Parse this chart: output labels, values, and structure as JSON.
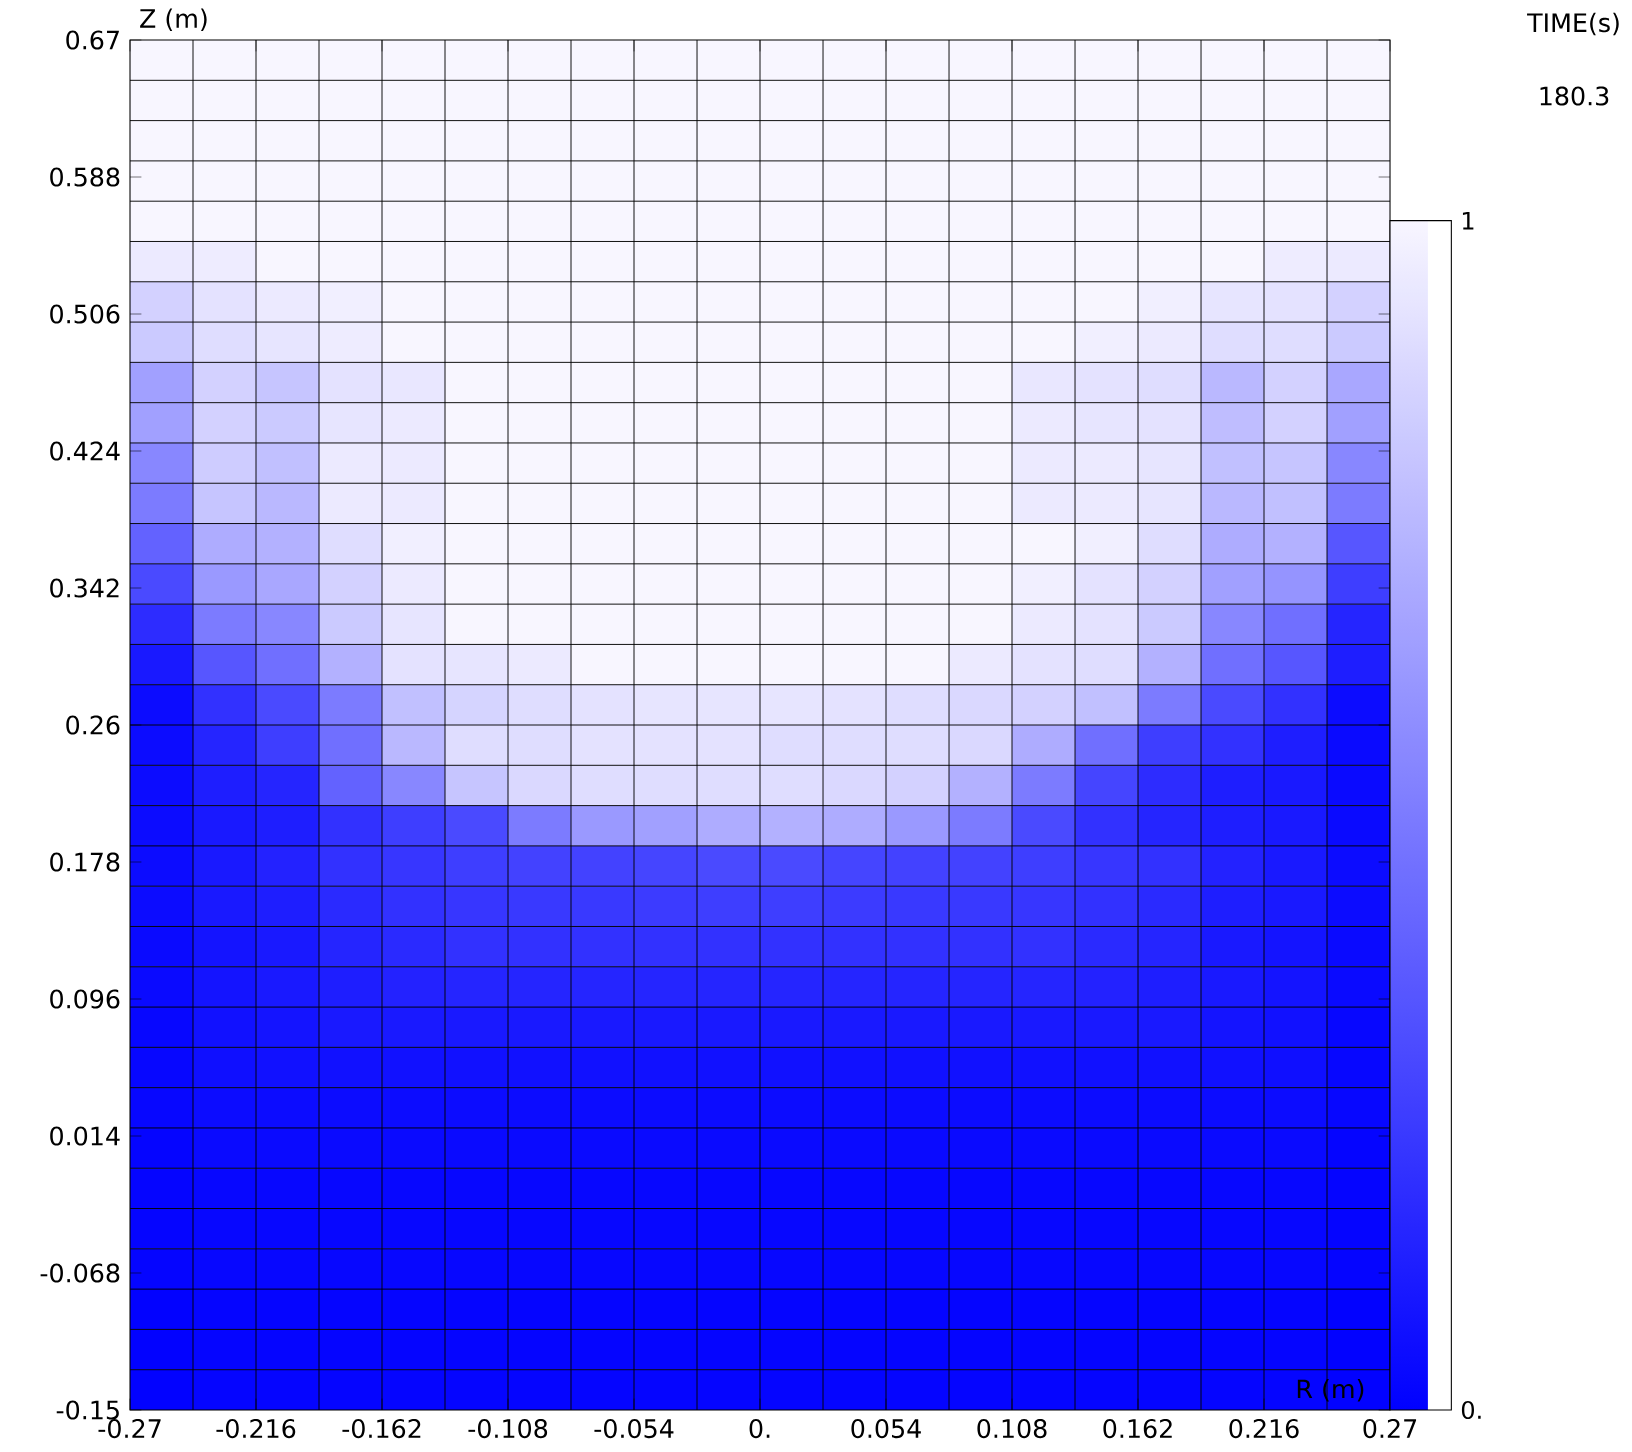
{
  "chart_data": {
    "type": "heatmap",
    "xlabel": "R (m)",
    "ylabel": "Z (m)",
    "annotations": [
      "TIME(s)",
      "180.3"
    ],
    "xlim": [
      -0.27,
      0.27
    ],
    "ylim": [
      -0.15,
      0.67
    ],
    "xticks": [
      -0.27,
      -0.216,
      -0.162,
      -0.108,
      -0.054,
      {
        "value": 0,
        "label": "0."
      },
      0.054,
      0.108,
      0.162,
      0.216,
      0.27
    ],
    "yticks": [
      -0.15,
      -0.068,
      0.014,
      0.096,
      0.178,
      0.26,
      0.342,
      0.424,
      0.506,
      0.588,
      0.67
    ],
    "grid": true,
    "clim": [
      0,
      1
    ],
    "cticks": [
      {
        "value": 0,
        "label": "0."
      },
      1
    ],
    "cells": [
      [
        1,
        1,
        1,
        1,
        1,
        1,
        1,
        1,
        1,
        1,
        1,
        1,
        1,
        1,
        1,
        1,
        1,
        1,
        1,
        1
      ],
      [
        1,
        1,
        1,
        1,
        1,
        1,
        1,
        1,
        1,
        1,
        1,
        1,
        1,
        1,
        1,
        1,
        1,
        1,
        1,
        1
      ],
      [
        1,
        1,
        1,
        1,
        1,
        1,
        1,
        1,
        1,
        1,
        1,
        1,
        1,
        1,
        1,
        1,
        1,
        1,
        1,
        1
      ],
      [
        1,
        1,
        1,
        1,
        1,
        1,
        1,
        1,
        1,
        1,
        1,
        1,
        1,
        1,
        1,
        1,
        1,
        1,
        1,
        1
      ],
      [
        1,
        1,
        1,
        1,
        1,
        1,
        1,
        1,
        1,
        1,
        1,
        1,
        1,
        1,
        1,
        1,
        1,
        1,
        1,
        1
      ],
      [
        0.95,
        0.96,
        1,
        1,
        1,
        1,
        1,
        1,
        1,
        1,
        1,
        1,
        1,
        1,
        1,
        1,
        1,
        1,
        0.96,
        0.95
      ],
      [
        0.85,
        0.92,
        0.95,
        0.97,
        1,
        1,
        1,
        1,
        1,
        1,
        1,
        1,
        1,
        1,
        1,
        1,
        0.97,
        0.93,
        0.92,
        0.85
      ],
      [
        0.82,
        0.9,
        0.93,
        0.96,
        1,
        1,
        1,
        1,
        1,
        1,
        1,
        1,
        1,
        1,
        1,
        0.97,
        0.95,
        0.9,
        0.9,
        0.82
      ],
      [
        0.65,
        0.85,
        0.8,
        0.92,
        0.94,
        1,
        1,
        1,
        1,
        1,
        1,
        1,
        1,
        1,
        0.94,
        0.92,
        0.9,
        0.75,
        0.85,
        0.68
      ],
      [
        0.65,
        0.85,
        0.82,
        0.93,
        0.95,
        1,
        1,
        1,
        1,
        1,
        1,
        1,
        1,
        1,
        0.95,
        0.93,
        0.92,
        0.77,
        0.85,
        0.65
      ],
      [
        0.55,
        0.83,
        0.78,
        0.95,
        0.95,
        1,
        1,
        1,
        1,
        1,
        1,
        1,
        1,
        1,
        0.95,
        0.95,
        0.93,
        0.78,
        0.8,
        0.55
      ],
      [
        0.5,
        0.8,
        0.75,
        0.95,
        0.95,
        1,
        1,
        1,
        1,
        1,
        1,
        1,
        1,
        1,
        0.95,
        0.95,
        0.93,
        0.75,
        0.78,
        0.5
      ],
      [
        0.4,
        0.7,
        0.72,
        0.9,
        0.97,
        1,
        1,
        1,
        1,
        1,
        1,
        1,
        1,
        1,
        1,
        0.97,
        0.9,
        0.7,
        0.72,
        0.35
      ],
      [
        0.3,
        0.62,
        0.68,
        0.85,
        0.95,
        1,
        1,
        1,
        1,
        1,
        1,
        1,
        1,
        1,
        0.97,
        0.92,
        0.85,
        0.65,
        0.6,
        0.25
      ],
      [
        0.18,
        0.5,
        0.55,
        0.82,
        0.93,
        1,
        1,
        1,
        1,
        1,
        1,
        1,
        1,
        1,
        0.95,
        0.92,
        0.82,
        0.55,
        0.45,
        0.15
      ],
      [
        0.1,
        0.35,
        0.45,
        0.72,
        0.92,
        0.93,
        0.95,
        1,
        1,
        1,
        1,
        1,
        1,
        0.95,
        0.92,
        0.9,
        0.72,
        0.45,
        0.35,
        0.12
      ],
      [
        0.05,
        0.2,
        0.3,
        0.5,
        0.78,
        0.86,
        0.9,
        0.92,
        0.93,
        0.93,
        0.93,
        0.92,
        0.9,
        0.88,
        0.85,
        0.78,
        0.5,
        0.3,
        0.2,
        0.05
      ],
      [
        0.05,
        0.15,
        0.25,
        0.45,
        0.75,
        0.9,
        0.9,
        0.92,
        0.92,
        0.92,
        0.9,
        0.9,
        0.9,
        0.88,
        0.7,
        0.45,
        0.25,
        0.2,
        0.12,
        0.04
      ],
      [
        0.05,
        0.12,
        0.15,
        0.4,
        0.55,
        0.8,
        0.88,
        0.9,
        0.9,
        0.9,
        0.9,
        0.88,
        0.85,
        0.72,
        0.5,
        0.28,
        0.18,
        0.12,
        0.1,
        0.04
      ],
      [
        0.05,
        0.1,
        0.12,
        0.2,
        0.25,
        0.3,
        0.5,
        0.62,
        0.65,
        0.7,
        0.72,
        0.7,
        0.62,
        0.5,
        0.3,
        0.2,
        0.15,
        0.12,
        0.1,
        0.04
      ],
      [
        0.05,
        0.1,
        0.14,
        0.2,
        0.22,
        0.25,
        0.27,
        0.27,
        0.28,
        0.3,
        0.3,
        0.28,
        0.27,
        0.27,
        0.25,
        0.22,
        0.2,
        0.14,
        0.1,
        0.05
      ],
      [
        0.05,
        0.1,
        0.12,
        0.17,
        0.2,
        0.22,
        0.23,
        0.23,
        0.24,
        0.25,
        0.25,
        0.24,
        0.23,
        0.23,
        0.22,
        0.2,
        0.17,
        0.12,
        0.1,
        0.05
      ],
      [
        0.04,
        0.08,
        0.1,
        0.15,
        0.17,
        0.2,
        0.2,
        0.2,
        0.2,
        0.2,
        0.2,
        0.2,
        0.2,
        0.2,
        0.2,
        0.17,
        0.15,
        0.1,
        0.08,
        0.04
      ],
      [
        0.04,
        0.08,
        0.1,
        0.12,
        0.14,
        0.15,
        0.15,
        0.15,
        0.15,
        0.15,
        0.15,
        0.15,
        0.15,
        0.15,
        0.15,
        0.14,
        0.12,
        0.1,
        0.08,
        0.04
      ],
      [
        0.03,
        0.07,
        0.08,
        0.1,
        0.1,
        0.1,
        0.1,
        0.1,
        0.1,
        0.1,
        0.1,
        0.1,
        0.1,
        0.1,
        0.1,
        0.1,
        0.1,
        0.08,
        0.07,
        0.03
      ],
      [
        0.03,
        0.06,
        0.07,
        0.07,
        0.07,
        0.07,
        0.07,
        0.07,
        0.07,
        0.07,
        0.07,
        0.07,
        0.07,
        0.07,
        0.07,
        0.07,
        0.07,
        0.07,
        0.06,
        0.03
      ],
      [
        0.03,
        0.05,
        0.05,
        0.05,
        0.05,
        0.05,
        0.05,
        0.05,
        0.05,
        0.05,
        0.05,
        0.05,
        0.05,
        0.05,
        0.05,
        0.05,
        0.05,
        0.05,
        0.05,
        0.03
      ],
      [
        0.02,
        0.04,
        0.04,
        0.04,
        0.04,
        0.04,
        0.04,
        0.04,
        0.04,
        0.04,
        0.04,
        0.04,
        0.04,
        0.04,
        0.04,
        0.04,
        0.04,
        0.04,
        0.04,
        0.02
      ],
      [
        0.02,
        0.03,
        0.03,
        0.03,
        0.03,
        0.03,
        0.03,
        0.03,
        0.03,
        0.03,
        0.03,
        0.03,
        0.03,
        0.03,
        0.03,
        0.03,
        0.03,
        0.03,
        0.03,
        0.02
      ],
      [
        0.02,
        0.03,
        0.03,
        0.03,
        0.03,
        0.03,
        0.03,
        0.03,
        0.03,
        0.03,
        0.03,
        0.03,
        0.03,
        0.03,
        0.03,
        0.03,
        0.03,
        0.03,
        0.03,
        0.02
      ],
      [
        0.02,
        0.03,
        0.03,
        0.03,
        0.03,
        0.03,
        0.03,
        0.03,
        0.03,
        0.03,
        0.03,
        0.03,
        0.03,
        0.03,
        0.03,
        0.03,
        0.03,
        0.03,
        0.03,
        0.02
      ],
      [
        0.01,
        0.02,
        0.02,
        0.02,
        0.02,
        0.02,
        0.02,
        0.02,
        0.02,
        0.02,
        0.02,
        0.02,
        0.02,
        0.02,
        0.02,
        0.02,
        0.02,
        0.02,
        0.02,
        0.01
      ],
      [
        0.01,
        0.02,
        0.02,
        0.02,
        0.02,
        0.02,
        0.02,
        0.02,
        0.02,
        0.02,
        0.02,
        0.02,
        0.02,
        0.02,
        0.02,
        0.02,
        0.02,
        0.02,
        0.02,
        0.01
      ],
      [
        0.01,
        0.02,
        0.02,
        0.02,
        0.02,
        0.02,
        0.02,
        0.02,
        0.02,
        0.02,
        0.02,
        0.02,
        0.02,
        0.02,
        0.02,
        0.02,
        0.02,
        0.02,
        0.02,
        0.01
      ]
    ]
  }
}
